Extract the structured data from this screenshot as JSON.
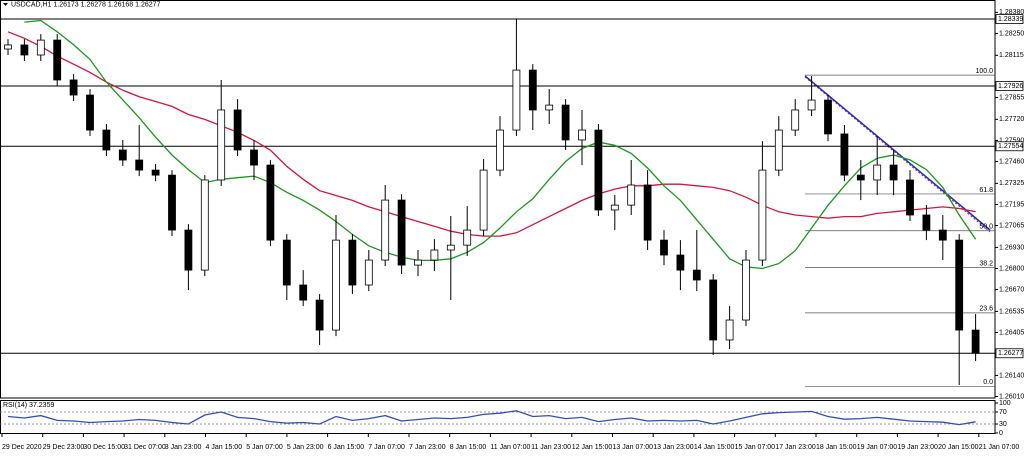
{
  "chart_data": {
    "type": "candlestick",
    "title": "USDCAD,H1  1.26173 1.26278 1.26168 1.26277",
    "ylim": [
      1.26001,
      1.28407
    ],
    "yticks": [
      {
        "value": 1.2838,
        "label": "1.28380"
      },
      {
        "value": 1.2825,
        "label": "1.28250"
      },
      {
        "value": 1.28115,
        "label": "1.28115"
      },
      {
        "value": 1.27855,
        "label": "1.27855"
      },
      {
        "value": 1.2772,
        "label": "1.27720"
      },
      {
        "value": 1.2759,
        "label": "1.27590"
      },
      {
        "value": 1.2746,
        "label": "1.27460"
      },
      {
        "value": 1.27325,
        "label": "1.27325"
      },
      {
        "value": 1.27195,
        "label": "1.27195"
      },
      {
        "value": 1.27065,
        "label": "1.27065"
      },
      {
        "value": 1.2693,
        "label": "1.26930"
      },
      {
        "value": 1.268,
        "label": "1.26800"
      },
      {
        "value": 1.2667,
        "label": "1.26670"
      },
      {
        "value": 1.26535,
        "label": "1.26535"
      },
      {
        "value": 1.26405,
        "label": "1.26405"
      },
      {
        "value": 1.2614,
        "label": "1.26140"
      },
      {
        "value": 1.2601,
        "label": "1.26010"
      }
    ],
    "levels": [
      {
        "value": 1.28339,
        "label": "1.28339"
      },
      {
        "value": 1.27926,
        "label": "1.27926"
      },
      {
        "value": 1.27554,
        "label": "1.27554"
      }
    ],
    "last": {
      "value": 1.26277,
      "label": "1.26277"
    },
    "fib": [
      {
        "label": "100.0",
        "value": 1.27993
      },
      {
        "label": "61.8",
        "value": 1.2726
      },
      {
        "label": "50.0",
        "value": 1.27033
      },
      {
        "label": "38.2",
        "value": 1.26806
      },
      {
        "label": "23.6",
        "value": 1.26526
      },
      {
        "label": "0.0",
        "value": 1.26073
      }
    ],
    "x_labels": [
      "29 Dec 2020",
      "29 Dec 23:00",
      "30 Dec 15:00",
      "31 Dec 07:00",
      "3 Jan 23:00",
      "4 Jan 15:00",
      "5 Jan 07:00",
      "5 Jan 23:00",
      "6 Jan 15:00",
      "7 Jan 07:00",
      "7 Jan 23:00",
      "8 Jan 15:00",
      "11 Jan 07:00",
      "11 Jan 23:00",
      "12 Jan 15:00",
      "13 Jan 07:00",
      "13 Jan 23:00",
      "14 Jan 15:00",
      "15 Jan 07:00",
      "17 Jan 23:00",
      "18 Jan 15:00",
      "19 Jan 07:00",
      "19 Jan 23:00",
      "20 Jan 15:00",
      "21 Jan 07:00"
    ],
    "ohlc": [
      [
        1.28154,
        1.28215,
        1.28117,
        1.28179
      ],
      [
        1.28179,
        1.28215,
        1.2808,
        1.28117
      ],
      [
        1.28117,
        1.28246,
        1.2808,
        1.28209
      ],
      [
        1.28209,
        1.28246,
        1.27926,
        1.27963
      ],
      [
        1.27963,
        1.28,
        1.27833,
        1.2787
      ],
      [
        1.2787,
        1.27907,
        1.27617,
        1.27654
      ],
      [
        1.27654,
        1.27691,
        1.27494,
        1.27531
      ],
      [
        1.27531,
        1.27593,
        1.27432,
        1.27469
      ],
      [
        1.27469,
        1.27685,
        1.2737,
        1.27407
      ],
      [
        1.27407,
        1.27444,
        1.27339,
        1.27376
      ],
      [
        1.27376,
        1.27407,
        1.27,
        1.27037
      ],
      [
        1.27037,
        1.27074,
        1.26667,
        1.2679
      ],
      [
        1.2679,
        1.27376,
        1.26753,
        1.27346
      ],
      [
        1.27346,
        1.27963,
        1.27309,
        1.27778
      ],
      [
        1.27778,
        1.27845,
        1.27494,
        1.27531
      ],
      [
        1.27531,
        1.27593,
        1.27346,
        1.27438
      ],
      [
        1.27438,
        1.27469,
        1.26938,
        1.26975
      ],
      [
        1.26975,
        1.27012,
        1.26605,
        1.26698
      ],
      [
        1.26698,
        1.2679,
        1.26568,
        1.26605
      ],
      [
        1.26605,
        1.26642,
        1.26328,
        1.2642
      ],
      [
        1.2642,
        1.2713,
        1.26383,
        1.26975
      ],
      [
        1.26975,
        1.27012,
        1.26642,
        1.26698
      ],
      [
        1.26698,
        1.26914,
        1.26661,
        1.26852
      ],
      [
        1.26852,
        1.27315,
        1.26815,
        1.27222
      ],
      [
        1.27222,
        1.27259,
        1.26766,
        1.26821
      ],
      [
        1.26821,
        1.26914,
        1.26753,
        1.26852
      ],
      [
        1.26852,
        1.26981,
        1.26784,
        1.26914
      ],
      [
        1.26914,
        1.27124,
        1.26605,
        1.26944
      ],
      [
        1.26944,
        1.27185,
        1.26877,
        1.27037
      ],
      [
        1.27037,
        1.27475,
        1.27,
        1.27407
      ],
      [
        1.27407,
        1.2774,
        1.2737,
        1.27654
      ],
      [
        1.27654,
        1.28339,
        1.27617,
        1.28024
      ],
      [
        1.28024,
        1.28061,
        1.27654,
        1.27778
      ],
      [
        1.27778,
        1.27907,
        1.27691,
        1.27808
      ],
      [
        1.27808,
        1.27845,
        1.27531,
        1.27593
      ],
      [
        1.27593,
        1.27778,
        1.27438,
        1.27654
      ],
      [
        1.27654,
        1.27691,
        1.27124,
        1.27161
      ],
      [
        1.27161,
        1.27253,
        1.27037,
        1.27191
      ],
      [
        1.27191,
        1.27469,
        1.2713,
        1.27315
      ],
      [
        1.27315,
        1.27407,
        1.26914,
        1.26975
      ],
      [
        1.26975,
        1.27037,
        1.26821,
        1.26883
      ],
      [
        1.26883,
        1.26975,
        1.26667,
        1.2679
      ],
      [
        1.2679,
        1.27037,
        1.26661,
        1.26729
      ],
      [
        1.26729,
        1.26766,
        1.26266,
        1.26359
      ],
      [
        1.26359,
        1.26568,
        1.26303,
        1.26482
      ],
      [
        1.26482,
        1.26914,
        1.26445,
        1.26852
      ],
      [
        1.26852,
        1.27586,
        1.26815,
        1.27407
      ],
      [
        1.27407,
        1.2774,
        1.2737,
        1.27654
      ],
      [
        1.27654,
        1.27845,
        1.27617,
        1.27778
      ],
      [
        1.27778,
        1.27987,
        1.2774,
        1.27839
      ],
      [
        1.27839,
        1.2787,
        1.27586,
        1.2763
      ],
      [
        1.2763,
        1.27685,
        1.27339,
        1.27376
      ],
      [
        1.27376,
        1.27469,
        1.27222,
        1.27346
      ],
      [
        1.27346,
        1.27617,
        1.27253,
        1.27438
      ],
      [
        1.27438,
        1.27531,
        1.27253,
        1.27346
      ],
      [
        1.27346,
        1.27407,
        1.27093,
        1.2713
      ],
      [
        1.2713,
        1.27191,
        1.26975,
        1.27037
      ],
      [
        1.27037,
        1.2713,
        1.26852,
        1.26975
      ],
      [
        1.26975,
        1.27012,
        1.26081,
        1.2642
      ],
      [
        1.2642,
        1.26519,
        1.26229,
        1.26277
      ]
    ],
    "lines": [
      {
        "color": "#d9143c",
        "values": [
          1.2826,
          1.2822,
          1.2817,
          1.2811,
          1.2806,
          1.2801,
          1.2795,
          1.279,
          1.2786,
          1.2783,
          1.278,
          1.2775,
          1.2772,
          1.2768,
          1.2764,
          1.2759,
          1.2753,
          1.2743,
          1.2735,
          1.2728,
          1.2725,
          1.2722,
          1.2718,
          1.2715,
          1.2712,
          1.2709,
          1.2706,
          1.2703,
          1.2701,
          1.27,
          1.27,
          1.2702,
          1.2707,
          1.2712,
          1.2717,
          1.2722,
          1.2726,
          1.2729,
          1.2731,
          1.2731,
          1.2732,
          1.2732,
          1.2731,
          1.273,
          1.2728,
          1.2724,
          1.2719,
          1.2715,
          1.2713,
          1.2712,
          1.2711,
          1.2712,
          1.2712,
          1.2714,
          1.2715,
          1.2716,
          1.2717,
          1.2718,
          1.2717,
          1.2715
        ]
      },
      {
        "color": "#1a9a1a",
        "values": [
          null,
          1.2832,
          1.2833,
          1.2826,
          1.2818,
          1.2809,
          1.2795,
          1.2784,
          1.2773,
          1.2761,
          1.275,
          1.2741,
          1.2733,
          1.2735,
          1.2736,
          1.2737,
          1.2733,
          1.2727,
          1.2722,
          1.2716,
          1.2709,
          1.2701,
          1.2694,
          1.269,
          1.2687,
          1.2685,
          1.2685,
          1.2686,
          1.269,
          1.2696,
          1.2705,
          1.2715,
          1.2723,
          1.2735,
          1.2746,
          1.2754,
          1.2758,
          1.2756,
          1.2751,
          1.2742,
          1.2731,
          1.2722,
          1.271,
          1.2698,
          1.2686,
          1.2681,
          1.268,
          1.2683,
          1.2691,
          1.2705,
          1.2719,
          1.2731,
          1.2742,
          1.2748,
          1.275,
          1.2747,
          1.2741,
          1.273,
          1.2713,
          1.2698
        ]
      }
    ],
    "rsi": {
      "label": "RSI(14) 37.2359",
      "color": "#3050c0",
      "ylim": [
        0,
        100
      ],
      "yticks": [
        100,
        70,
        30,
        0
      ],
      "levels": [
        70,
        30
      ],
      "values": [
        55,
        50,
        58,
        42,
        40,
        35,
        38,
        40,
        45,
        42,
        35,
        30,
        60,
        70,
        52,
        48,
        38,
        33,
        35,
        30,
        55,
        42,
        48,
        58,
        40,
        45,
        50,
        48,
        52,
        62,
        66,
        74,
        55,
        58,
        48,
        52,
        38,
        45,
        50,
        40,
        42,
        40,
        42,
        30,
        40,
        52,
        64,
        68,
        70,
        72,
        55,
        46,
        48,
        52,
        46,
        40,
        38,
        36,
        28,
        37.2359
      ]
    }
  }
}
